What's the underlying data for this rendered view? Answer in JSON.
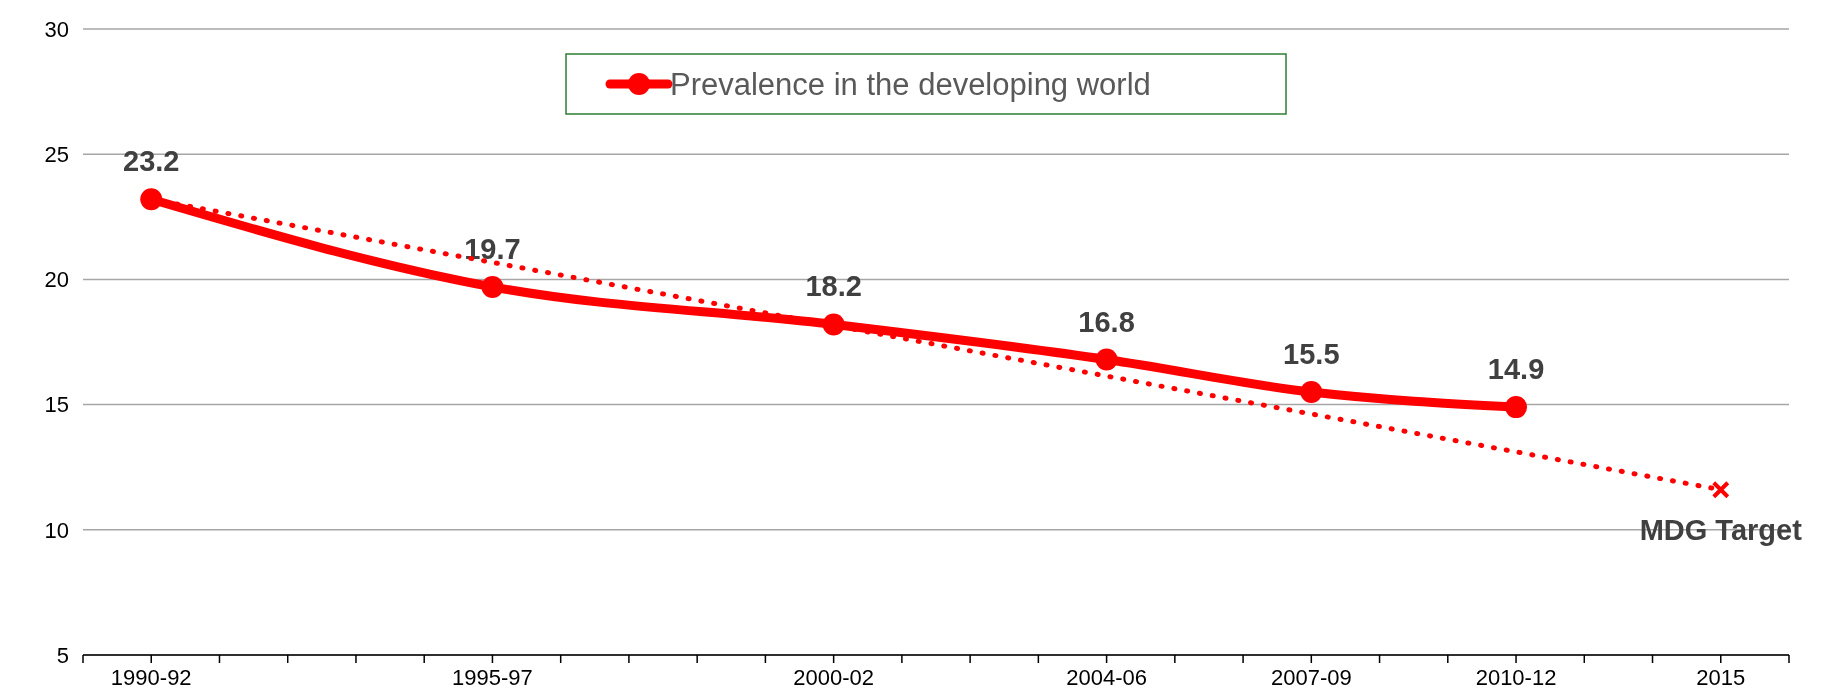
{
  "chart_data": {
    "type": "line",
    "categories": [
      "1990-92",
      null,
      null,
      null,
      null,
      "1995-97",
      null,
      null,
      null,
      null,
      "2000-02",
      null,
      null,
      null,
      "2004-06",
      null,
      null,
      "2007-09",
      null,
      null,
      "2010-12",
      null,
      null,
      "2015"
    ],
    "ylim": [
      5,
      30
    ],
    "yticks": [
      5,
      10,
      15,
      20,
      25,
      30
    ],
    "grid": "y",
    "legend": "top",
    "series": [
      {
        "name": "Prevalence in the developing world",
        "color": "#ff0000",
        "values": [
          23.2,
          null,
          null,
          null,
          null,
          19.7,
          null,
          null,
          null,
          null,
          18.2,
          null,
          null,
          null,
          16.8,
          null,
          null,
          15.5,
          null,
          null,
          14.9,
          null,
          null,
          null
        ],
        "value_labels": [
          "23.2",
          null,
          null,
          null,
          null,
          "19.7",
          null,
          null,
          null,
          null,
          "18.2",
          null,
          null,
          null,
          "16.8",
          null,
          null,
          "15.5",
          null,
          null,
          "14.9",
          null,
          null,
          null
        ],
        "marker": "circle",
        "line_style": "solid"
      },
      {
        "color": "#ff0000",
        "values": [
          23.2,
          null,
          null,
          null,
          null,
          null,
          null,
          null,
          null,
          null,
          null,
          null,
          null,
          null,
          null,
          null,
          null,
          null,
          null,
          null,
          null,
          null,
          null,
          11.6
        ],
        "marker": "cross",
        "line_style": "dotted"
      }
    ],
    "annotations": [
      {
        "text": "MDG Target",
        "x": "2015",
        "y": 11.6
      }
    ]
  }
}
